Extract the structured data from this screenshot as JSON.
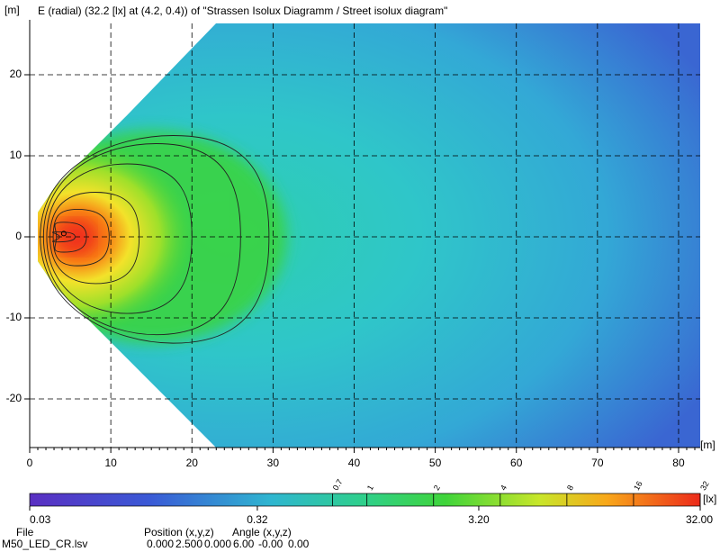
{
  "chart_data": {
    "type": "isolux",
    "title": "E (radial) (32.2 [lx] at (4.2, 0.4)) of \"Strassen Isolux Diagramm / Street isolux diagram\"",
    "x_unit": "[m]",
    "y_unit": "[m]",
    "xlim": [
      0,
      82
    ],
    "xticks": [
      0,
      10,
      20,
      30,
      40,
      50,
      60,
      70,
      80
    ],
    "ylim": [
      -26,
      26
    ],
    "yticks": [
      -20,
      -10,
      0,
      10,
      20
    ],
    "grid": true,
    "colorbar": {
      "unit": "[lx]",
      "scale": "log",
      "lim": [
        0.03,
        32
      ],
      "ticks": [
        {
          "value": 0.03,
          "label": "0.03"
        },
        {
          "value": 0.32,
          "label": "0.32"
        },
        {
          "value": 3.2,
          "label": "3.20"
        },
        {
          "value": 32,
          "label": "32.00"
        }
      ],
      "contour_levels": [
        0.7,
        1,
        2,
        4,
        8,
        16,
        32
      ]
    }
  },
  "footer": {
    "file_label": "File",
    "file": "M50_LED_CR.lsv",
    "position_label": "Position (x,y,z)",
    "position": [
      "0.000",
      "2.500",
      "0.000"
    ],
    "angle_label": "Angle (x,y,z)",
    "angle": [
      "6.00",
      "-0.00",
      "0.00"
    ]
  }
}
